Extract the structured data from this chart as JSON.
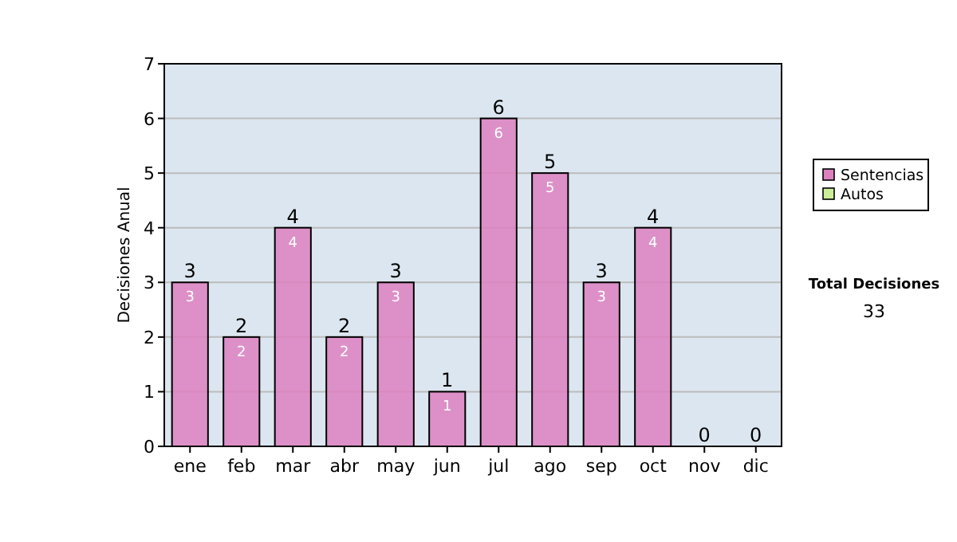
{
  "chart_data": {
    "type": "bar",
    "stacked": true,
    "ylabel": "Decisiones Anual",
    "categories": [
      "ene",
      "feb",
      "mar",
      "abr",
      "may",
      "jun",
      "jul",
      "ago",
      "sep",
      "oct",
      "nov",
      "dic"
    ],
    "series": [
      {
        "name": "Sentencias",
        "color": "#dd80c0",
        "values": [
          3,
          2,
          4,
          2,
          3,
          1,
          6,
          5,
          3,
          4,
          0,
          0
        ],
        "value_labels": [
          "3",
          "2",
          "4",
          "2",
          "3",
          "1",
          "6",
          "5",
          "3",
          "4",
          null,
          null
        ]
      },
      {
        "name": "Autos",
        "color": "#ccee99",
        "values": [
          0,
          0,
          0,
          0,
          0,
          0,
          0,
          0,
          0,
          0,
          0,
          0
        ]
      }
    ],
    "totals": [
      "3",
      "2",
      "4",
      "2",
      "3",
      "1",
      "6",
      "5",
      "3",
      "4",
      "0",
      "0"
    ],
    "ylim": [
      0,
      7
    ],
    "yticks": [
      0,
      1,
      2,
      3,
      4,
      5,
      6,
      7
    ],
    "grid": "y",
    "legend": "right",
    "annotations": [
      "Total Decisiones",
      "33"
    ]
  }
}
